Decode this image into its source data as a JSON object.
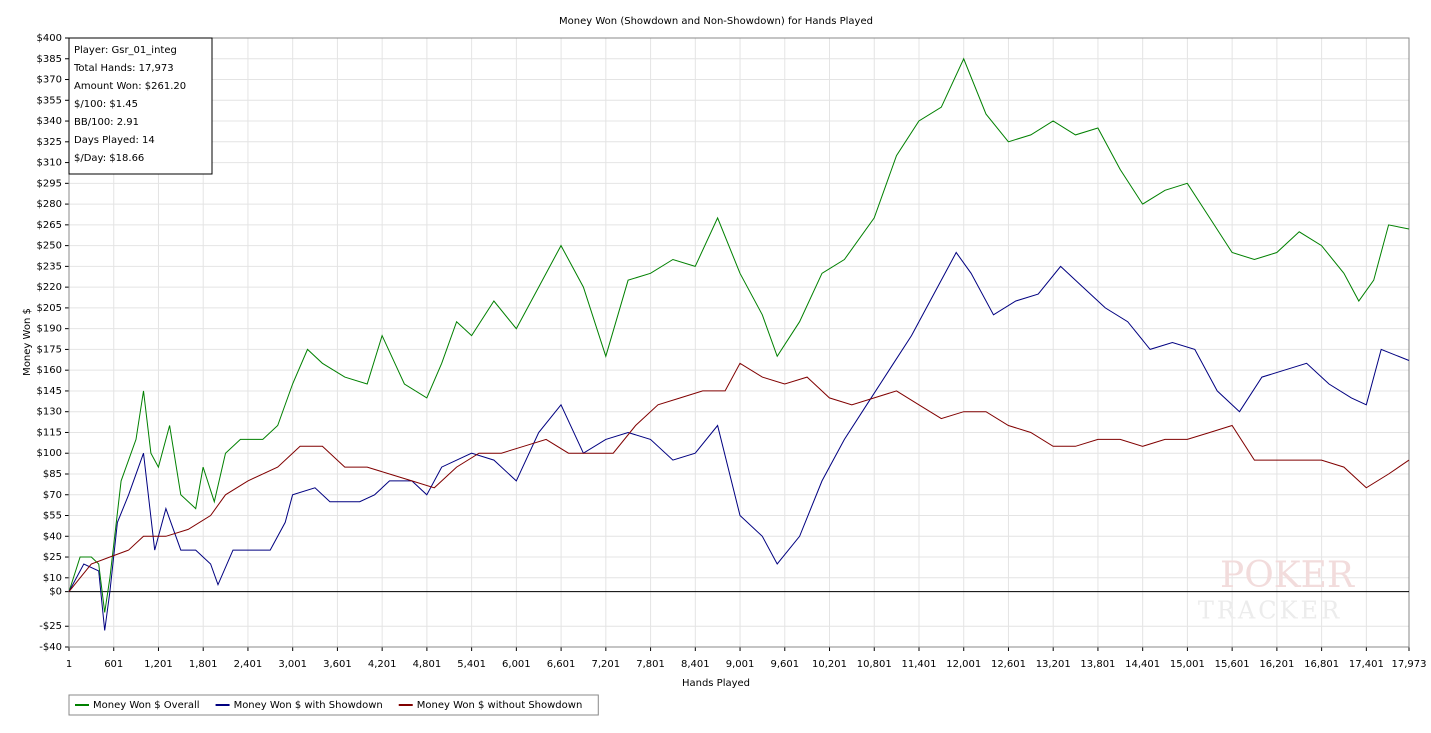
{
  "chart_data": {
    "type": "line",
    "title": "Money Won (Showdown and Non-Showdown) for Hands Played",
    "xlabel": "Hands Played",
    "ylabel": "Money Won $",
    "info_box": [
      "Player: Gsr_01_integ",
      "Total Hands: 17,973",
      "Amount Won: $261.20",
      "$/100: $1.45",
      "BB/100: 2.91",
      "Days Played: 14",
      "$/Day: $18.66"
    ],
    "watermark": [
      "POKER",
      "TRACKER"
    ],
    "grid": true,
    "legend": "bottom-left",
    "xlim": [
      1,
      17973
    ],
    "ylim": [
      -40,
      400
    ],
    "xticks": [
      1,
      601,
      {
        "value": 1201,
        "label": "1,201"
      },
      {
        "value": 1801,
        "label": "1,801"
      },
      {
        "value": 2401,
        "label": "2,401"
      },
      {
        "value": 3001,
        "label": "3,001"
      },
      {
        "value": 3601,
        "label": "3,601"
      },
      {
        "value": 4201,
        "label": "4,201"
      },
      {
        "value": 4801,
        "label": "4,801"
      },
      {
        "value": 5401,
        "label": "5,401"
      },
      {
        "value": 6001,
        "label": "6,001"
      },
      {
        "value": 6601,
        "label": "6,601"
      },
      {
        "value": 7201,
        "label": "7,201"
      },
      {
        "value": 7801,
        "label": "7,801"
      },
      {
        "value": 8401,
        "label": "8,401"
      },
      {
        "value": 9001,
        "label": "9,001"
      },
      {
        "value": 9601,
        "label": "9,601"
      },
      {
        "value": 10201,
        "label": "10,201"
      },
      {
        "value": 10801,
        "label": "10,801"
      },
      {
        "value": 11401,
        "label": "11,401"
      },
      {
        "value": 12001,
        "label": "12,001"
      },
      {
        "value": 12601,
        "label": "12,601"
      },
      {
        "value": 13201,
        "label": "13,201"
      },
      {
        "value": 13801,
        "label": "13,801"
      },
      {
        "value": 14401,
        "label": "14,401"
      },
      {
        "value": 15001,
        "label": "15,001"
      },
      {
        "value": 15601,
        "label": "15,601"
      },
      {
        "value": 16201,
        "label": "16,201"
      },
      {
        "value": 16801,
        "label": "16,801"
      },
      {
        "value": 17401,
        "label": "17,401"
      },
      {
        "value": 17973,
        "label": "17,973"
      }
    ],
    "yticks": [
      {
        "value": 400,
        "label": "$400"
      },
      {
        "value": 385,
        "label": "$385"
      },
      {
        "value": 370,
        "label": "$370"
      },
      {
        "value": 355,
        "label": "$355"
      },
      {
        "value": 340,
        "label": "$340"
      },
      {
        "value": 325,
        "label": "$325"
      },
      {
        "value": 310,
        "label": "$310"
      },
      {
        "value": 295,
        "label": "$295"
      },
      {
        "value": 280,
        "label": "$280"
      },
      {
        "value": 265,
        "label": "$265"
      },
      {
        "value": 250,
        "label": "$250"
      },
      {
        "value": 235,
        "label": "$235"
      },
      {
        "value": 220,
        "label": "$220"
      },
      {
        "value": 205,
        "label": "$205"
      },
      {
        "value": 190,
        "label": "$190"
      },
      {
        "value": 175,
        "label": "$175"
      },
      {
        "value": 160,
        "label": "$160"
      },
      {
        "value": 145,
        "label": "$145"
      },
      {
        "value": 130,
        "label": "$130"
      },
      {
        "value": 115,
        "label": "$115"
      },
      {
        "value": 100,
        "label": "$100"
      },
      {
        "value": 85,
        "label": "$85"
      },
      {
        "value": 70,
        "label": "$70"
      },
      {
        "value": 55,
        "label": "$55"
      },
      {
        "value": 40,
        "label": "$40"
      },
      {
        "value": 25,
        "label": "$25"
      },
      {
        "value": 10,
        "label": "$10"
      },
      {
        "value": 0,
        "label": "$0"
      },
      {
        "value": -25,
        "label": "-$25"
      },
      {
        "value": -40,
        "label": "-$40"
      }
    ],
    "series": [
      {
        "name": "Money Won $ Overall",
        "color": "#008000",
        "x": [
          1,
          150,
          300,
          400,
          480,
          550,
          700,
          900,
          1000,
          1100,
          1200,
          1350,
          1500,
          1700,
          1800,
          1950,
          2100,
          2300,
          2600,
          2800,
          3000,
          3200,
          3400,
          3700,
          4000,
          4200,
          4500,
          4800,
          5000,
          5200,
          5400,
          5700,
          6000,
          6300,
          6600,
          6900,
          7200,
          7500,
          7800,
          8100,
          8400,
          8700,
          9000,
          9300,
          9500,
          9800,
          10100,
          10400,
          10800,
          11100,
          11400,
          11700,
          12000,
          12300,
          12600,
          12900,
          13200,
          13500,
          13800,
          14100,
          14400,
          14700,
          15000,
          15300,
          15600,
          15900,
          16200,
          16500,
          16800,
          17100,
          17300,
          17500,
          17700,
          17973
        ],
        "values": [
          0,
          25,
          25,
          20,
          -15,
          10,
          80,
          110,
          145,
          100,
          90,
          120,
          70,
          60,
          90,
          65,
          100,
          110,
          110,
          120,
          150,
          175,
          165,
          155,
          150,
          185,
          150,
          140,
          165,
          195,
          185,
          210,
          190,
          220,
          250,
          220,
          170,
          225,
          230,
          240,
          235,
          270,
          230,
          200,
          170,
          195,
          230,
          240,
          270,
          315,
          340,
          350,
          385,
          345,
          325,
          330,
          340,
          330,
          335,
          305,
          280,
          290,
          295,
          270,
          245,
          240,
          245,
          260,
          250,
          230,
          210,
          225,
          265,
          262
        ]
      },
      {
        "name": "Money Won $ with Showdown",
        "color": "#000080",
        "x": [
          1,
          200,
          400,
          480,
          550,
          650,
          800,
          1000,
          1150,
          1300,
          1500,
          1700,
          1900,
          2000,
          2200,
          2500,
          2700,
          2900,
          3000,
          3300,
          3500,
          3900,
          4100,
          4300,
          4600,
          4800,
          5000,
          5400,
          5700,
          6000,
          6300,
          6600,
          6900,
          7200,
          7500,
          7800,
          8100,
          8400,
          8700,
          9000,
          9300,
          9500,
          9800,
          10100,
          10400,
          10700,
          11000,
          11300,
          11600,
          11900,
          12100,
          12400,
          12700,
          13000,
          13300,
          13600,
          13900,
          14200,
          14500,
          14800,
          15100,
          15400,
          15700,
          16000,
          16300,
          16600,
          16900,
          17200,
          17400,
          17600,
          17973
        ],
        "values": [
          0,
          20,
          15,
          -28,
          0,
          50,
          70,
          100,
          30,
          60,
          30,
          30,
          20,
          5,
          30,
          30,
          30,
          50,
          70,
          75,
          65,
          65,
          70,
          80,
          80,
          70,
          90,
          100,
          95,
          80,
          115,
          135,
          100,
          110,
          115,
          110,
          95,
          100,
          120,
          55,
          40,
          20,
          40,
          80,
          110,
          135,
          160,
          185,
          215,
          245,
          230,
          200,
          210,
          215,
          235,
          220,
          205,
          195,
          175,
          180,
          175,
          145,
          130,
          155,
          160,
          165,
          150,
          140,
          135,
          175,
          167
        ]
      },
      {
        "name": "Money Won $ without Showdown",
        "color": "#800000",
        "x": [
          1,
          300,
          550,
          800,
          1000,
          1300,
          1600,
          1900,
          2100,
          2400,
          2800,
          3100,
          3400,
          3700,
          4000,
          4300,
          4600,
          4900,
          5200,
          5500,
          5800,
          6100,
          6400,
          6700,
          7000,
          7300,
          7600,
          7900,
          8200,
          8500,
          8800,
          9000,
          9300,
          9600,
          9900,
          10200,
          10500,
          10800,
          11100,
          11400,
          11700,
          12000,
          12300,
          12600,
          12900,
          13200,
          13500,
          13800,
          14100,
          14400,
          14700,
          15000,
          15300,
          15600,
          15900,
          16200,
          16500,
          16800,
          17100,
          17400,
          17700,
          17973
        ],
        "values": [
          0,
          20,
          25,
          30,
          40,
          40,
          45,
          55,
          70,
          80,
          90,
          105,
          105,
          90,
          90,
          85,
          80,
          75,
          90,
          100,
          100,
          105,
          110,
          100,
          100,
          100,
          120,
          135,
          140,
          145,
          145,
          165,
          155,
          150,
          155,
          140,
          135,
          140,
          145,
          135,
          125,
          130,
          130,
          120,
          115,
          105,
          105,
          110,
          110,
          105,
          110,
          110,
          115,
          120,
          95,
          95,
          95,
          95,
          90,
          75,
          85,
          95
        ]
      }
    ]
  }
}
